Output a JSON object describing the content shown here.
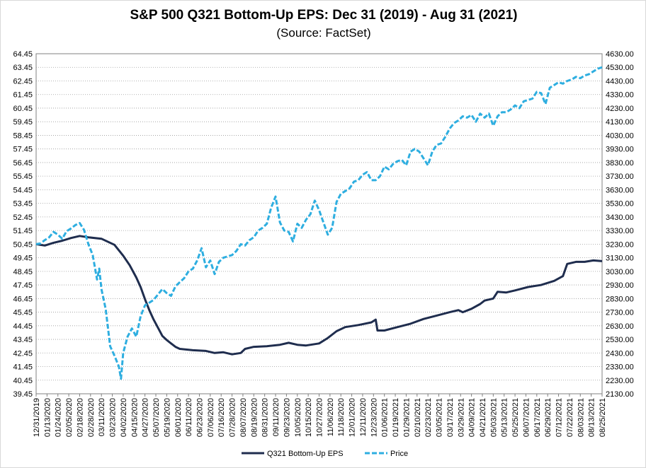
{
  "chart_data": {
    "type": "line",
    "title": "S&P 500 Q321 Bottom-Up EPS: Dec 31 (2019) - Aug 31 (2021)",
    "subtitle": "(Source: FactSet)",
    "left_axis": {
      "ylim": [
        39.45,
        64.45
      ],
      "ticks": [
        "39.45",
        "40.45",
        "41.45",
        "42.45",
        "43.45",
        "44.45",
        "45.45",
        "46.45",
        "47.45",
        "48.45",
        "49.45",
        "50.45",
        "51.45",
        "52.45",
        "53.45",
        "54.45",
        "55.45",
        "56.45",
        "57.45",
        "58.45",
        "59.45",
        "60.45",
        "61.45",
        "62.45",
        "63.45",
        "64.45"
      ]
    },
    "right_axis": {
      "ylim": [
        2130,
        4630
      ],
      "ticks": [
        "2130.00",
        "2230.00",
        "2330.00",
        "2430.00",
        "2530.00",
        "2630.00",
        "2730.00",
        "2830.00",
        "2930.00",
        "3030.00",
        "3130.00",
        "3230.00",
        "3330.00",
        "3430.00",
        "3530.00",
        "3630.00",
        "3730.00",
        "3830.00",
        "3930.00",
        "4030.00",
        "4130.00",
        "4230.00",
        "4330.00",
        "4430.00",
        "4530.00",
        "4630.00"
      ]
    },
    "x_ticks": [
      "12/31/2019",
      "01/13/2020",
      "01/24/2020",
      "02/05/2020",
      "02/18/2020",
      "02/28/2020",
      "03/11/2020",
      "03/23/2020",
      "04/02/2020",
      "04/15/2020",
      "04/27/2020",
      "05/07/2020",
      "05/19/2020",
      "06/01/2020",
      "06/11/2020",
      "06/23/2020",
      "07/06/2020",
      "07/16/2020",
      "07/28/2020",
      "08/07/2020",
      "08/19/2020",
      "08/31/2020",
      "09/11/2020",
      "09/23/2020",
      "10/05/2020",
      "10/15/2020",
      "10/27/2020",
      "11/06/2020",
      "11/18/2020",
      "12/01/2020",
      "12/11/2020",
      "12/23/2020",
      "01/06/2021",
      "01/19/2021",
      "01/29/2021",
      "02/10/2021",
      "02/23/2021",
      "03/05/2021",
      "03/17/2021",
      "03/29/2021",
      "04/09/2021",
      "04/21/2021",
      "05/03/2021",
      "05/13/2021",
      "05/25/2021",
      "06/07/2021",
      "06/17/2021",
      "06/29/2021",
      "07/12/2021",
      "07/22/2021",
      "08/03/2021",
      "08/13/2021",
      "08/25/2021"
    ],
    "grid": true,
    "legend_position": "bottom",
    "series": [
      {
        "name": "Q321 Bottom-Up EPS",
        "axis": "left",
        "color": "#1f2d4e",
        "style": "solid",
        "points": [
          [
            0,
            50.45
          ],
          [
            2,
            50.35
          ],
          [
            4,
            50.55
          ],
          [
            6,
            50.7
          ],
          [
            8,
            50.9
          ],
          [
            10,
            51.05
          ],
          [
            12,
            50.95
          ],
          [
            15,
            50.85
          ],
          [
            18,
            50.4
          ],
          [
            20,
            49.6
          ],
          [
            21.5,
            48.9
          ],
          [
            23,
            48.0
          ],
          [
            24,
            47.3
          ],
          [
            25,
            46.4
          ],
          [
            26,
            45.6
          ],
          [
            27,
            44.9
          ],
          [
            28,
            44.3
          ],
          [
            29,
            43.7
          ],
          [
            30,
            43.4
          ],
          [
            31,
            43.15
          ],
          [
            32,
            42.9
          ],
          [
            33,
            42.75
          ],
          [
            36,
            42.65
          ],
          [
            39,
            42.6
          ],
          [
            41,
            42.45
          ],
          [
            43,
            42.5
          ],
          [
            45,
            42.35
          ],
          [
            47,
            42.45
          ],
          [
            48,
            42.75
          ],
          [
            50,
            42.9
          ],
          [
            53,
            42.95
          ],
          [
            56,
            43.05
          ],
          [
            58,
            43.2
          ],
          [
            60,
            43.05
          ],
          [
            62,
            43.0
          ],
          [
            65,
            43.15
          ],
          [
            67,
            43.55
          ],
          [
            69,
            44.05
          ],
          [
            71,
            44.35
          ],
          [
            74,
            44.5
          ],
          [
            77,
            44.7
          ],
          [
            78,
            44.9
          ],
          [
            78.4,
            44.1
          ],
          [
            80,
            44.1
          ],
          [
            83,
            44.35
          ],
          [
            86,
            44.6
          ],
          [
            89,
            44.95
          ],
          [
            92,
            45.2
          ],
          [
            95,
            45.45
          ],
          [
            97,
            45.6
          ],
          [
            98,
            45.45
          ],
          [
            100,
            45.7
          ],
          [
            102,
            46.05
          ],
          [
            103,
            46.3
          ],
          [
            105,
            46.45
          ],
          [
            106,
            46.95
          ],
          [
            108,
            46.9
          ],
          [
            110,
            47.05
          ],
          [
            113,
            47.3
          ],
          [
            116,
            47.45
          ],
          [
            119,
            47.75
          ],
          [
            121,
            48.1
          ],
          [
            122,
            49.0
          ],
          [
            124,
            49.15
          ],
          [
            126,
            49.15
          ],
          [
            128,
            49.25
          ],
          [
            130,
            49.2
          ]
        ]
      },
      {
        "name": "Price",
        "axis": "right",
        "color": "#2eaee0",
        "style": "dashed",
        "points": [
          [
            0,
            3230
          ],
          [
            1,
            3235
          ],
          [
            2,
            3260
          ],
          [
            3,
            3280
          ],
          [
            4,
            3320
          ],
          [
            5,
            3300
          ],
          [
            6,
            3270
          ],
          [
            7,
            3325
          ],
          [
            8,
            3345
          ],
          [
            9,
            3370
          ],
          [
            10,
            3385
          ],
          [
            11,
            3335
          ],
          [
            12,
            3230
          ],
          [
            13,
            3150
          ],
          [
            14,
            2970
          ],
          [
            14.5,
            3050
          ],
          [
            15,
            2900
          ],
          [
            16,
            2750
          ],
          [
            17,
            2480
          ],
          [
            18,
            2410
          ],
          [
            19,
            2330
          ],
          [
            19.5,
            2240
          ],
          [
            20,
            2430
          ],
          [
            21,
            2550
          ],
          [
            22,
            2610
          ],
          [
            23,
            2550
          ],
          [
            24,
            2700
          ],
          [
            25,
            2780
          ],
          [
            26,
            2800
          ],
          [
            27,
            2820
          ],
          [
            28,
            2860
          ],
          [
            29,
            2900
          ],
          [
            30,
            2870
          ],
          [
            31,
            2850
          ],
          [
            32,
            2920
          ],
          [
            33,
            2950
          ],
          [
            34,
            2980
          ],
          [
            35,
            3030
          ],
          [
            36,
            3050
          ],
          [
            37,
            3110
          ],
          [
            38,
            3200
          ],
          [
            39,
            3060
          ],
          [
            40,
            3110
          ],
          [
            41,
            3010
          ],
          [
            42,
            3100
          ],
          [
            43,
            3130
          ],
          [
            44,
            3140
          ],
          [
            45,
            3150
          ],
          [
            46,
            3180
          ],
          [
            47,
            3230
          ],
          [
            48,
            3220
          ],
          [
            49,
            3260
          ],
          [
            50,
            3280
          ],
          [
            51,
            3330
          ],
          [
            52,
            3350
          ],
          [
            53,
            3380
          ],
          [
            54,
            3500
          ],
          [
            55,
            3580
          ],
          [
            56,
            3390
          ],
          [
            57,
            3330
          ],
          [
            58,
            3320
          ],
          [
            59,
            3250
          ],
          [
            60,
            3380
          ],
          [
            61,
            3350
          ],
          [
            62,
            3410
          ],
          [
            63,
            3450
          ],
          [
            64,
            3550
          ],
          [
            65,
            3480
          ],
          [
            66,
            3390
          ],
          [
            67,
            3300
          ],
          [
            68,
            3350
          ],
          [
            69,
            3540
          ],
          [
            70,
            3600
          ],
          [
            71,
            3620
          ],
          [
            72,
            3640
          ],
          [
            73,
            3690
          ],
          [
            74,
            3700
          ],
          [
            75,
            3740
          ],
          [
            76,
            3760
          ],
          [
            77,
            3700
          ],
          [
            78,
            3700
          ],
          [
            79,
            3730
          ],
          [
            80,
            3800
          ],
          [
            81,
            3780
          ],
          [
            82,
            3820
          ],
          [
            83,
            3840
          ],
          [
            84,
            3850
          ],
          [
            85,
            3810
          ],
          [
            86,
            3910
          ],
          [
            87,
            3930
          ],
          [
            88,
            3910
          ],
          [
            89,
            3860
          ],
          [
            90,
            3810
          ],
          [
            91,
            3910
          ],
          [
            92,
            3960
          ],
          [
            93,
            3970
          ],
          [
            94,
            4020
          ],
          [
            95,
            4080
          ],
          [
            96,
            4120
          ],
          [
            97,
            4140
          ],
          [
            98,
            4170
          ],
          [
            99,
            4160
          ],
          [
            100,
            4180
          ],
          [
            101,
            4130
          ],
          [
            102,
            4190
          ],
          [
            103,
            4160
          ],
          [
            104,
            4190
          ],
          [
            105,
            4100
          ],
          [
            106,
            4170
          ],
          [
            107,
            4200
          ],
          [
            108,
            4200
          ],
          [
            109,
            4220
          ],
          [
            110,
            4250
          ],
          [
            111,
            4230
          ],
          [
            112,
            4280
          ],
          [
            113,
            4290
          ],
          [
            114,
            4300
          ],
          [
            115,
            4350
          ],
          [
            116,
            4340
          ],
          [
            117,
            4260
          ],
          [
            118,
            4380
          ],
          [
            119,
            4400
          ],
          [
            120,
            4420
          ],
          [
            121,
            4410
          ],
          [
            122,
            4430
          ],
          [
            123,
            4440
          ],
          [
            124,
            4460
          ],
          [
            125,
            4450
          ],
          [
            126,
            4470
          ],
          [
            127,
            4480
          ],
          [
            128,
            4500
          ],
          [
            129,
            4520
          ],
          [
            130,
            4530
          ]
        ]
      }
    ]
  }
}
